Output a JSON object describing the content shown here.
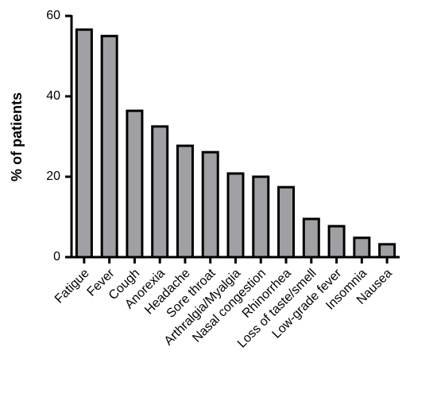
{
  "chart_data": {
    "type": "bar",
    "y_label": "% of patients",
    "categories": [
      "Fatigue",
      "Fever",
      "Cough",
      "Anorexia",
      "Headache",
      "Sore throat",
      "Arthralgia/Myalgia",
      "Nasal congestion",
      "Rhinorrhea",
      "Loss of taste/smell",
      "Low-grade fever",
      "Insomnia",
      "Nausea"
    ],
    "values": [
      56.6,
      55.0,
      36.4,
      32.5,
      27.7,
      26.1,
      20.8,
      20.0,
      17.4,
      9.5,
      7.7,
      4.8,
      3.2
    ],
    "color": "#a0a0a4",
    "ylim": [
      0,
      60
    ],
    "yticks": [
      0,
      20,
      40,
      60
    ],
    "grid": false
  }
}
